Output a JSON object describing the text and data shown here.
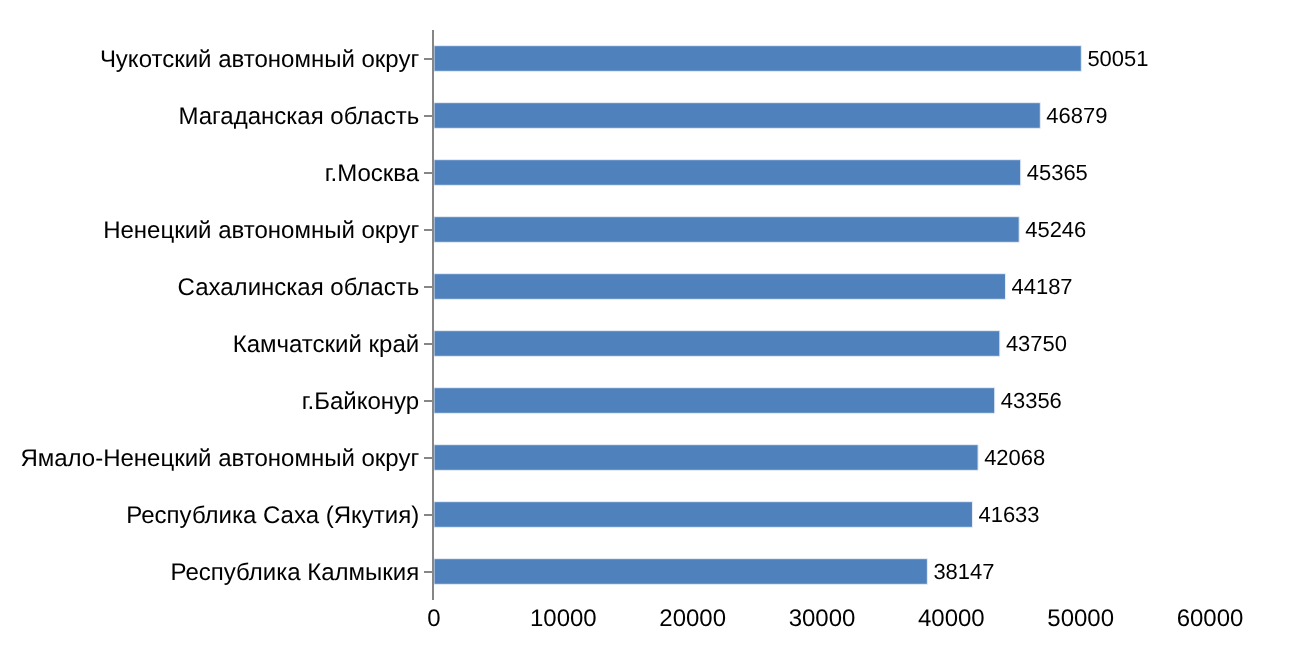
{
  "chart_data": {
    "type": "bar",
    "orientation": "horizontal",
    "categories": [
      "Чукотский автономный округ",
      "Магаданская область",
      "г.Москва",
      "Ненецкий автономный округ",
      "Сахалинская область",
      "Камчатский край",
      "г.Байконур",
      "Ямало-Ненецкий автономный округ",
      "Республика Саха (Якутия)",
      "Республика Калмыкия"
    ],
    "values": [
      50051,
      46879,
      45365,
      45246,
      44187,
      43750,
      43356,
      42068,
      41633,
      38147
    ],
    "color": "#4f81bd",
    "xlim": [
      0,
      60000
    ],
    "xticks": [
      0,
      10000,
      20000,
      30000,
      40000,
      50000,
      60000
    ],
    "data_labels": true
  }
}
